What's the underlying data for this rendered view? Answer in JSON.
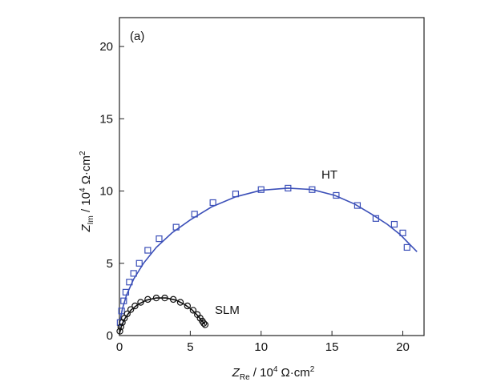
{
  "chart_data": {
    "type": "scatter",
    "panel_label": "(a)",
    "xlabel": {
      "main": "Z",
      "sub": "Re",
      "rest": " / 10",
      "sup": "4",
      "unit": " Ω·cm",
      "unit_sup": "2"
    },
    "ylabel": {
      "main": "Z",
      "sub": "Im",
      "rest": " / 10",
      "sup": "4",
      "unit": " Ω·cm",
      "unit_sup": "2"
    },
    "xlim": [
      0,
      21.5
    ],
    "ylim": [
      0,
      22
    ],
    "x_ticks": [
      0,
      5,
      10,
      15,
      20
    ],
    "y_ticks": [
      0,
      5,
      10,
      15,
      20
    ],
    "grid": false,
    "series": [
      {
        "name": "HT",
        "color": "#3b4fb8",
        "marker": "square",
        "points": [
          [
            0.05,
            0.9
          ],
          [
            0.15,
            1.7
          ],
          [
            0.3,
            2.4
          ],
          [
            0.45,
            3.0
          ],
          [
            0.7,
            3.7
          ],
          [
            1.0,
            4.3
          ],
          [
            1.4,
            5.0
          ],
          [
            2.0,
            5.9
          ],
          [
            2.8,
            6.7
          ],
          [
            4.0,
            7.5
          ],
          [
            5.3,
            8.4
          ],
          [
            6.6,
            9.2
          ],
          [
            8.2,
            9.8
          ],
          [
            10.0,
            10.1
          ],
          [
            11.9,
            10.2
          ],
          [
            13.6,
            10.1
          ],
          [
            15.3,
            9.7
          ],
          [
            16.8,
            9.0
          ],
          [
            18.1,
            8.1
          ],
          [
            19.4,
            7.7
          ],
          [
            20.0,
            7.1
          ],
          [
            20.3,
            6.1
          ]
        ],
        "fit": [
          [
            0.0,
            0.8
          ],
          [
            0.2,
            1.8
          ],
          [
            0.5,
            2.8
          ],
          [
            1.0,
            3.9
          ],
          [
            1.7,
            5.0
          ],
          [
            2.6,
            6.1
          ],
          [
            3.7,
            7.1
          ],
          [
            5.0,
            8.0
          ],
          [
            6.5,
            8.9
          ],
          [
            8.2,
            9.6
          ],
          [
            10.0,
            10.05
          ],
          [
            11.9,
            10.2
          ],
          [
            13.6,
            10.1
          ],
          [
            15.2,
            9.7
          ],
          [
            16.6,
            9.1
          ],
          [
            17.8,
            8.4
          ],
          [
            18.9,
            7.7
          ],
          [
            19.8,
            7.0
          ],
          [
            20.5,
            6.3
          ],
          [
            21.0,
            5.8
          ]
        ]
      },
      {
        "name": "SLM",
        "color": "#111111",
        "marker": "circle",
        "points": [
          [
            0.03,
            0.3
          ],
          [
            0.1,
            0.6
          ],
          [
            0.2,
            0.9
          ],
          [
            0.35,
            1.2
          ],
          [
            0.55,
            1.5
          ],
          [
            0.8,
            1.8
          ],
          [
            1.1,
            2.05
          ],
          [
            1.5,
            2.3
          ],
          [
            2.0,
            2.5
          ],
          [
            2.6,
            2.6
          ],
          [
            3.2,
            2.6
          ],
          [
            3.8,
            2.5
          ],
          [
            4.3,
            2.3
          ],
          [
            4.8,
            2.05
          ],
          [
            5.2,
            1.75
          ],
          [
            5.5,
            1.45
          ],
          [
            5.7,
            1.2
          ],
          [
            5.85,
            1.0
          ],
          [
            5.95,
            0.85
          ],
          [
            6.05,
            0.75
          ]
        ],
        "fit": [
          [
            0.0,
            0.1
          ],
          [
            0.15,
            0.7
          ],
          [
            0.4,
            1.2
          ],
          [
            0.8,
            1.75
          ],
          [
            1.3,
            2.15
          ],
          [
            1.9,
            2.45
          ],
          [
            2.6,
            2.6
          ],
          [
            3.3,
            2.6
          ],
          [
            4.0,
            2.45
          ],
          [
            4.6,
            2.15
          ],
          [
            5.1,
            1.8
          ],
          [
            5.5,
            1.4
          ],
          [
            5.8,
            1.05
          ],
          [
            6.05,
            0.75
          ]
        ]
      }
    ]
  }
}
